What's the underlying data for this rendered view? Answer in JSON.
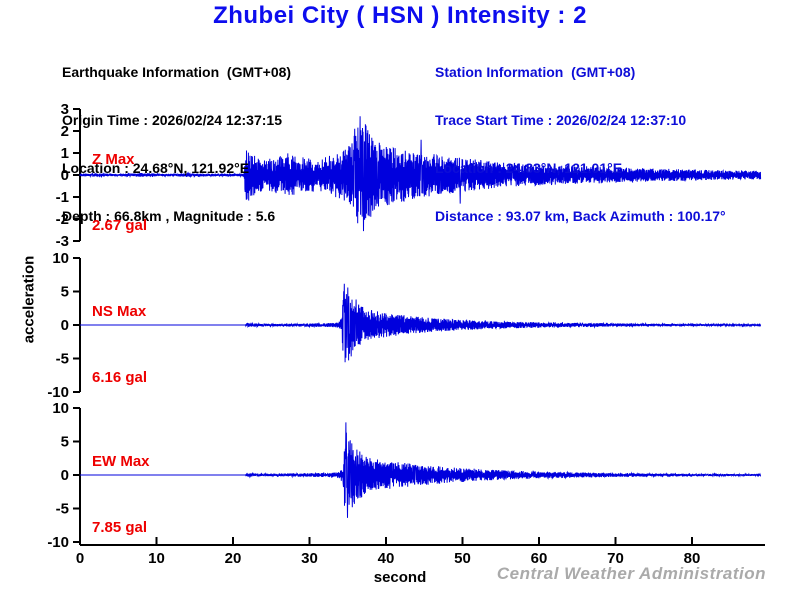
{
  "title": {
    "text": "Zhubei City ( HSN ) Intensity : 2"
  },
  "earthquake_info": {
    "heading": "Earthquake Information  (GMT+08)",
    "origin_time": "Origin Time : 2026/02/24 12:37:15",
    "location": "Location : 24.68°N, 121.92°E",
    "depth_magnitude": "Depth : 66.8km , Magnitude : 5.6"
  },
  "station_info": {
    "heading": "Station Information  (GMT+08)",
    "trace_start_time": "Trace Start Time : 2026/02/24 12:37:10",
    "location": "Location : 24.83°N, 121.01°E",
    "distance_azimuth": "Distance : 93.07 km, Back Azimuth : 100.17°"
  },
  "watermark": "Central Weather Administration",
  "colors": {
    "title_blue": "#0d0dee",
    "info_blue": "#0d0dd8",
    "trace_blue": "#0000dd",
    "label_red": "#ee0000",
    "axis_black": "#000000",
    "watermark_gray": "#aaaaaa"
  },
  "chart_data": {
    "type": "line",
    "title": "Zhubei City ( HSN ) Intensity : 2",
    "xlabel": "second",
    "ylabel": "acceleration",
    "units": "gal",
    "x_range": [
      0,
      89
    ],
    "x_ticks": [
      0,
      10,
      20,
      30,
      40,
      50,
      60,
      70,
      80
    ],
    "p_arrival_s": 21.7,
    "s_arrival_s": 34.5,
    "traces": [
      {
        "name": "Z",
        "max_label": "Z Max",
        "max_value": "2.67 gal",
        "max_gal": 2.67,
        "ylim": [
          -3,
          3
        ],
        "y_ticks": [
          3,
          2,
          1,
          0,
          -1,
          -2,
          -3
        ],
        "envelope": [
          [
            0,
            0.05
          ],
          [
            3,
            0.08
          ],
          [
            5,
            0.05
          ],
          [
            8,
            0.09
          ],
          [
            11,
            0.05
          ],
          [
            14,
            0.08
          ],
          [
            17,
            0.05
          ],
          [
            20,
            0.06
          ],
          [
            21.4,
            0.06
          ],
          [
            21.7,
            1.5
          ],
          [
            22.3,
            1.0
          ],
          [
            23.5,
            0.8
          ],
          [
            25,
            0.75
          ],
          [
            27,
            1.0
          ],
          [
            28.5,
            0.85
          ],
          [
            30,
            0.75
          ],
          [
            31.5,
            0.8
          ],
          [
            33,
            0.95
          ],
          [
            34.5,
            1.15
          ],
          [
            35.5,
            1.5
          ],
          [
            36.3,
            2.3
          ],
          [
            37.3,
            2.35
          ],
          [
            38.2,
            1.7
          ],
          [
            39.2,
            1.5
          ],
          [
            40.5,
            1.35
          ],
          [
            42,
            1.25
          ],
          [
            43.5,
            1.15
          ],
          [
            45,
            1.0
          ],
          [
            46.5,
            0.95
          ],
          [
            48,
            0.85
          ],
          [
            50,
            0.8
          ],
          [
            52,
            0.7
          ],
          [
            54,
            0.62
          ],
          [
            56,
            0.55
          ],
          [
            58,
            0.5
          ],
          [
            60,
            0.48
          ],
          [
            63,
            0.44
          ],
          [
            66,
            0.4
          ],
          [
            70,
            0.36
          ],
          [
            74,
            0.3
          ],
          [
            78,
            0.27
          ],
          [
            82,
            0.24
          ],
          [
            86,
            0.21
          ],
          [
            89,
            0.2
          ]
        ],
        "spikes": [
          [
            36.6,
            2.67
          ],
          [
            37.05,
            -2.55
          ],
          [
            35.9,
            2.1
          ],
          [
            38.0,
            -1.9
          ],
          [
            44.6,
            1.6
          ],
          [
            49.7,
            -1.3
          ]
        ]
      },
      {
        "name": "NS",
        "max_label": "NS Max",
        "max_value": "6.16 gal",
        "max_gal": 6.16,
        "ylim": [
          -10,
          10
        ],
        "y_ticks": [
          10,
          5,
          0,
          -5,
          -10
        ],
        "envelope": [
          [
            0,
            0
          ],
          [
            21.6,
            0
          ],
          [
            21.8,
            0.28
          ],
          [
            23,
            0.22
          ],
          [
            25,
            0.2
          ],
          [
            27,
            0.22
          ],
          [
            29,
            0.24
          ],
          [
            31,
            0.27
          ],
          [
            33,
            0.3
          ],
          [
            33.8,
            0.4
          ],
          [
            34.2,
            1.2
          ],
          [
            34.5,
            6.0
          ],
          [
            35.3,
            5.2
          ],
          [
            36,
            3.4
          ],
          [
            37,
            2.7
          ],
          [
            38,
            2.3
          ],
          [
            39,
            2.0
          ],
          [
            40.5,
            1.75
          ],
          [
            42,
            1.5
          ],
          [
            43.5,
            1.3
          ],
          [
            45,
            1.15
          ],
          [
            47,
            1.0
          ],
          [
            49,
            0.85
          ],
          [
            51,
            0.72
          ],
          [
            53,
            0.62
          ],
          [
            55,
            0.55
          ],
          [
            57,
            0.48
          ],
          [
            59,
            0.43
          ],
          [
            61,
            0.4
          ],
          [
            64,
            0.34
          ],
          [
            67,
            0.29
          ],
          [
            70,
            0.25
          ],
          [
            73,
            0.22
          ],
          [
            76,
            0.19
          ],
          [
            79,
            0.17
          ],
          [
            82,
            0.15
          ],
          [
            85,
            0.13
          ],
          [
            89,
            0.12
          ]
        ],
        "spikes": [
          [
            34.55,
            6.16
          ],
          [
            34.75,
            -4.9
          ],
          [
            35.0,
            5.6
          ],
          [
            35.25,
            -4.3
          ],
          [
            36.1,
            3.8
          ]
        ]
      },
      {
        "name": "EW",
        "max_label": "EW Max",
        "max_value": "7.85 gal",
        "max_gal": 7.85,
        "ylim": [
          -10,
          10
        ],
        "y_ticks": [
          10,
          5,
          0,
          -5,
          -10
        ],
        "envelope": [
          [
            0,
            0
          ],
          [
            21.6,
            0
          ],
          [
            21.8,
            0.28
          ],
          [
            23.5,
            0.22
          ],
          [
            25.5,
            0.2
          ],
          [
            27.5,
            0.24
          ],
          [
            29.5,
            0.27
          ],
          [
            31.5,
            0.3
          ],
          [
            33,
            0.35
          ],
          [
            34.0,
            0.5
          ],
          [
            34.4,
            1.5
          ],
          [
            34.7,
            7.0
          ],
          [
            35.2,
            5.8
          ],
          [
            35.8,
            4.4
          ],
          [
            36.6,
            3.5
          ],
          [
            37.5,
            2.8
          ],
          [
            38.5,
            2.4
          ],
          [
            39.5,
            2.2
          ],
          [
            41,
            2.0
          ],
          [
            42.5,
            1.8
          ],
          [
            44,
            1.6
          ],
          [
            45.5,
            1.45
          ],
          [
            47,
            1.3
          ],
          [
            48.5,
            1.15
          ],
          [
            50,
            1.05
          ],
          [
            52,
            0.9
          ],
          [
            54,
            0.78
          ],
          [
            56,
            0.68
          ],
          [
            58,
            0.6
          ],
          [
            60,
            0.52
          ],
          [
            63,
            0.44
          ],
          [
            66,
            0.37
          ],
          [
            69,
            0.31
          ],
          [
            72,
            0.27
          ],
          [
            75,
            0.23
          ],
          [
            78,
            0.2
          ],
          [
            81,
            0.18
          ],
          [
            84,
            0.16
          ],
          [
            89,
            0.14
          ]
        ],
        "spikes": [
          [
            34.75,
            7.85
          ],
          [
            34.95,
            -6.4
          ],
          [
            35.3,
            5.2
          ],
          [
            35.6,
            -4.8
          ]
        ]
      }
    ]
  }
}
